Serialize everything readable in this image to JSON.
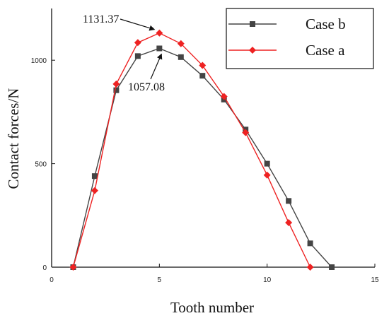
{
  "chart_data": {
    "type": "line",
    "xlabel": "Tooth number",
    "ylabel": "Contact forces/N",
    "xlim": [
      0,
      15
    ],
    "ylim": [
      0,
      1250
    ],
    "xticks": [
      0,
      5,
      10,
      15
    ],
    "yticks": [
      0,
      500,
      1000
    ],
    "grid": false,
    "legend_position": "top-right",
    "series": [
      {
        "name": "Case b",
        "color": "#444444",
        "marker": "square",
        "x": [
          1,
          2,
          3,
          4,
          5,
          6,
          7,
          8,
          9,
          10,
          11,
          12,
          13
        ],
        "y": [
          0,
          440,
          855,
          1020,
          1057.08,
          1015,
          925,
          810,
          665,
          500,
          320,
          115,
          0
        ]
      },
      {
        "name": "Case a",
        "color": "#ee2222",
        "marker": "diamond",
        "x": [
          1,
          2,
          3,
          4,
          5,
          6,
          7,
          8,
          9,
          10,
          11,
          12
        ],
        "y": [
          0,
          370,
          885,
          1085,
          1131.37,
          1080,
          975,
          825,
          650,
          445,
          215,
          0
        ]
      }
    ],
    "annotations": [
      {
        "text": "1131.37",
        "x": 5,
        "y": 1131.37
      },
      {
        "text": "1057.08",
        "x": 5,
        "y": 1057.08
      }
    ]
  }
}
